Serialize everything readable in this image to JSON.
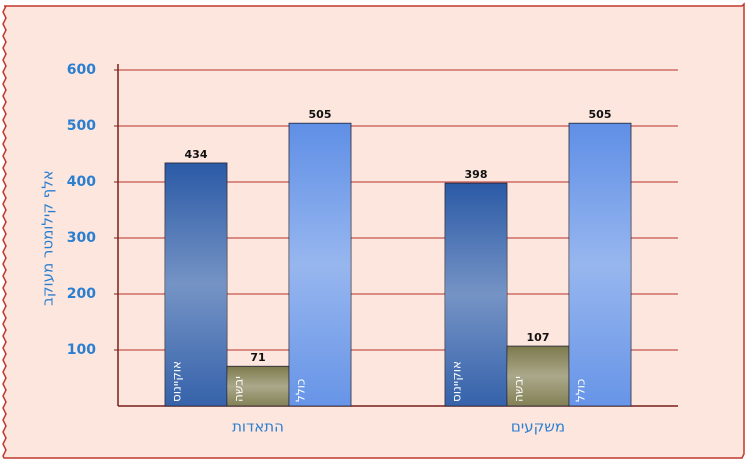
{
  "chart_data": {
    "type": "bar",
    "y_label": "אלף קילומטר מעוקב",
    "categories": [
      "התאדות",
      "משקעים"
    ],
    "series": [
      {
        "name": "אוקיינוס",
        "color": "#2b5aa6",
        "values": [
          434,
          398
        ]
      },
      {
        "name": "יבשה",
        "color": "#7d7a4c",
        "values": [
          71,
          107
        ]
      },
      {
        "name": "כולל",
        "color": "#5f8fe6",
        "values": [
          505,
          505
        ]
      }
    ],
    "ylim": [
      0,
      600
    ],
    "yticks": [
      100,
      200,
      300,
      400,
      500,
      600
    ],
    "grid": true
  }
}
